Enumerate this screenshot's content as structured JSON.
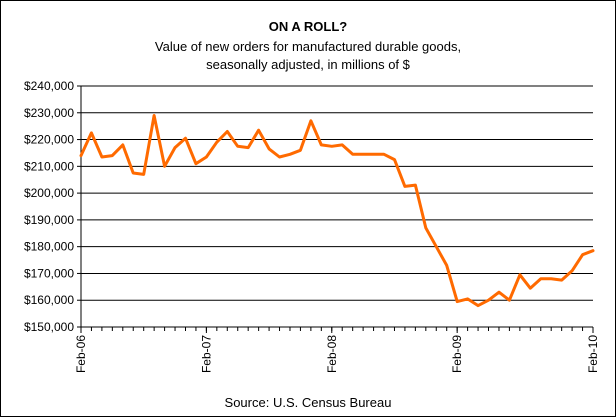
{
  "chart_data": {
    "type": "line",
    "title": "ON A ROLL?",
    "subtitle_lines": [
      "Value of new orders for manufactured durable goods,",
      "seasonally adjusted, in millions of $"
    ],
    "source": "Source: U.S. Census Bureau",
    "ylim": [
      150000,
      240000
    ],
    "y_ticks": [
      150000,
      160000,
      170000,
      180000,
      190000,
      200000,
      210000,
      220000,
      230000,
      240000
    ],
    "y_tick_labels": [
      "$150,000",
      "$160,000",
      "$170,000",
      "$180,000",
      "$190,000",
      "$200,000",
      "$210,000",
      "$220,000",
      "$230,000",
      "$240,000"
    ],
    "x_tick_labels": [
      "Feb-06",
      "Feb-07",
      "Feb-08",
      "Feb-09",
      "Feb-10"
    ],
    "grid": "horizontal",
    "line_color": "#ff6a00",
    "series": [
      {
        "values": [
          214000,
          222500,
          213500,
          214000,
          218000,
          207500,
          207000,
          229000,
          210000,
          217000,
          220500,
          211000,
          213500,
          219000,
          223000,
          217500,
          217000,
          223500,
          216500,
          213500,
          214500,
          216000,
          227000,
          218000,
          217500,
          218000,
          214500,
          214500,
          214500,
          214500,
          212500,
          202500,
          203000,
          187000,
          180000,
          173000,
          159500,
          160500,
          158000,
          160000,
          163000,
          160000,
          169500,
          164500,
          168000,
          168000,
          167500,
          171000,
          177000,
          178500
        ]
      }
    ]
  }
}
